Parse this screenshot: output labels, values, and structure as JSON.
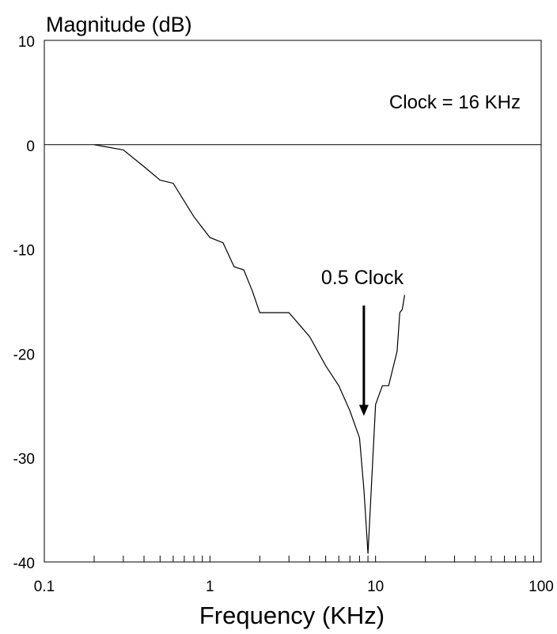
{
  "chart_data": {
    "type": "line",
    "title": "",
    "ylabel": "Magnitude (dB)",
    "xlabel": "Frequency (KHz)",
    "x_scale": "log",
    "xlim": [
      0.1,
      100
    ],
    "ylim": [
      -40,
      10
    ],
    "x_tick_labels": [
      {
        "value": 0.1,
        "label": "0.1"
      },
      {
        "value": 1,
        "label": "1"
      },
      {
        "value": 10,
        "label": "10"
      },
      {
        "value": 100,
        "label": "100"
      }
    ],
    "y_tick_labels": [
      {
        "value": 10,
        "label": "10"
      },
      {
        "value": 0,
        "label": "0"
      },
      {
        "value": -10,
        "label": "-10"
      },
      {
        "value": -20,
        "label": "-20"
      },
      {
        "value": -30,
        "label": "-30"
      },
      {
        "value": -40,
        "label": "-40"
      }
    ],
    "grid": false,
    "reference_line_y": 0,
    "series": [
      {
        "x": [
          0.2,
          0.3,
          0.4,
          0.5,
          0.6,
          0.8,
          1.0,
          1.2,
          1.4,
          1.6,
          1.8,
          2.0,
          3.0,
          4.0,
          5.0,
          6.0,
          7.0,
          8.0,
          8.5,
          9.0,
          10.0,
          11.0,
          12.0,
          13.5,
          14.0,
          14.5,
          15.0
        ],
        "y": [
          0,
          -0.5,
          -2.1,
          -3.4,
          -3.7,
          -6.9,
          -8.9,
          -9.4,
          -11.7,
          -12.0,
          -14.0,
          -16.1,
          -16.1,
          -18.4,
          -21.2,
          -23.1,
          -25.5,
          -28.1,
          -33.0,
          -39.2,
          -24.9,
          -23.1,
          -23.1,
          -19.8,
          -16.1,
          -15.8,
          -14.4
        ]
      }
    ],
    "annotations": [
      {
        "text": "Clock = 16 KHz"
      },
      {
        "text": "0.5 Clock",
        "arrow_target": {
          "x": 8.5,
          "y": -26
        }
      }
    ]
  }
}
